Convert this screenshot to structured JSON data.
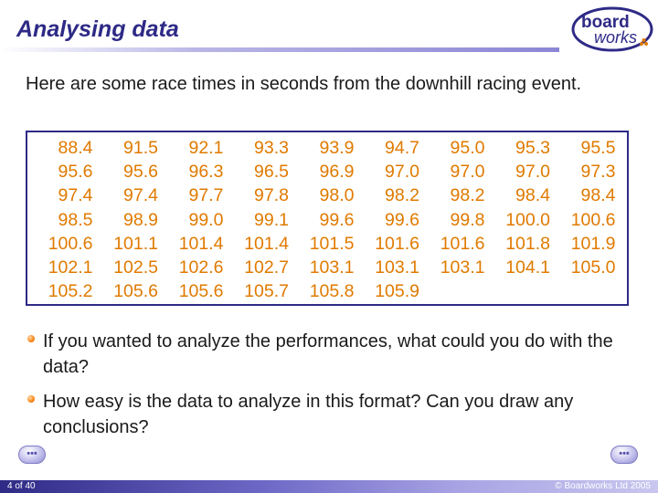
{
  "header": {
    "title": "Analysing data",
    "logo_text_top": "board",
    "logo_text_bottom": "works"
  },
  "intro_text": "Here are some race times in seconds from the downhill racing event.",
  "table": {
    "rows": [
      [
        "88.4",
        "91.5",
        "92.1",
        "93.3",
        "93.9",
        "94.7",
        "95.0",
        "95.3",
        "95.5"
      ],
      [
        "95.6",
        "95.6",
        "96.3",
        "96.5",
        "96.9",
        "97.0",
        "97.0",
        "97.0",
        "97.3"
      ],
      [
        "97.4",
        "97.4",
        "97.7",
        "97.8",
        "98.0",
        "98.2",
        "98.2",
        "98.4",
        "98.4"
      ],
      [
        "98.5",
        "98.9",
        "99.0",
        "99.1",
        "99.6",
        "99.6",
        "99.8",
        "100.0",
        "100.6"
      ],
      [
        "100.6",
        "101.1",
        "101.4",
        "101.4",
        "101.5",
        "101.6",
        "101.6",
        "101.8",
        "101.9"
      ],
      [
        "102.1",
        "102.5",
        "102.6",
        "102.7",
        "103.1",
        "103.1",
        "103.1",
        "104.1",
        "105.0"
      ],
      [
        "105.2",
        "105.6",
        "105.6",
        "105.7",
        "105.8",
        "105.9",
        "",
        "",
        ""
      ]
    ]
  },
  "bullets": [
    "If you wanted to analyze the performances, what could you do with the data?",
    "How easy is the data to analyze in this format? Can you draw any conclusions?"
  ],
  "nav": {
    "prev_icon": "back-arrow-icon",
    "next_icon": "forward-arrow-icon",
    "prev_label": "•••",
    "next_label": "•••"
  },
  "footer": {
    "page": "4 of 40",
    "copyright": "© Boardworks Ltd 2005"
  },
  "colors": {
    "title": "#2e2a86",
    "table_text": "#e07a00",
    "box_border": "#2e2a86"
  }
}
